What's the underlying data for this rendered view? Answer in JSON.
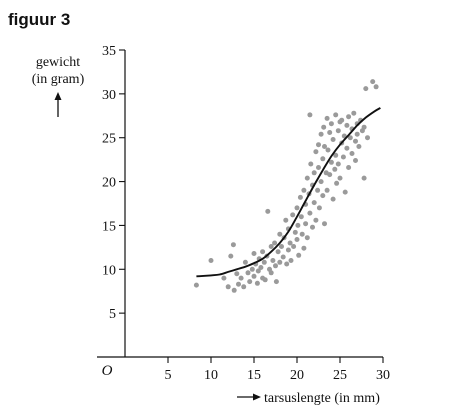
{
  "figure_label": "figuur 3",
  "chart_data": {
    "type": "scatter",
    "ylabel_line1": "gewicht",
    "ylabel_line2": "(in gram)",
    "xlabel": "tarsuslengte (in mm)",
    "origin_label": "O",
    "xlim": [
      0,
      30
    ],
    "ylim": [
      0,
      35
    ],
    "x_ticks": [
      5,
      10,
      15,
      20,
      25,
      30
    ],
    "y_ticks": [
      5,
      10,
      15,
      20,
      25,
      30,
      35
    ],
    "point_color": "#9a9a9a",
    "curve_color": "#111111",
    "series": [
      {
        "kind": "points",
        "points": [
          [
            8.3,
            8.2
          ],
          [
            10.0,
            11.0
          ],
          [
            11.5,
            9.0
          ],
          [
            12.0,
            8.0
          ],
          [
            12.3,
            11.5
          ],
          [
            12.6,
            12.8
          ],
          [
            12.7,
            7.6
          ],
          [
            13.0,
            9.5
          ],
          [
            13.2,
            8.3
          ],
          [
            13.5,
            9.0
          ],
          [
            13.8,
            8.0
          ],
          [
            14.0,
            10.8
          ],
          [
            14.3,
            9.6
          ],
          [
            14.5,
            8.6
          ],
          [
            14.8,
            10.0
          ],
          [
            15.0,
            11.8
          ],
          [
            15.0,
            9.2
          ],
          [
            15.2,
            10.6
          ],
          [
            15.4,
            8.4
          ],
          [
            15.5,
            9.8
          ],
          [
            15.6,
            11.2
          ],
          [
            15.8,
            10.2
          ],
          [
            16.0,
            12.0
          ],
          [
            16.0,
            9.0
          ],
          [
            16.2,
            10.8
          ],
          [
            16.3,
            8.8
          ],
          [
            16.5,
            11.5
          ],
          [
            16.6,
            16.6
          ],
          [
            16.8,
            10.0
          ],
          [
            17.0,
            12.6
          ],
          [
            17.0,
            9.6
          ],
          [
            17.2,
            11.0
          ],
          [
            17.4,
            13.0
          ],
          [
            17.5,
            10.4
          ],
          [
            17.6,
            8.6
          ],
          [
            17.8,
            12.0
          ],
          [
            18.0,
            14.0
          ],
          [
            18.0,
            10.8
          ],
          [
            18.2,
            12.6
          ],
          [
            18.4,
            11.4
          ],
          [
            18.5,
            13.6
          ],
          [
            18.7,
            15.6
          ],
          [
            18.8,
            10.6
          ],
          [
            19.0,
            12.2
          ],
          [
            19.0,
            14.6
          ],
          [
            19.2,
            13.0
          ],
          [
            19.3,
            11.0
          ],
          [
            19.5,
            16.2
          ],
          [
            19.6,
            12.6
          ],
          [
            19.8,
            14.2
          ],
          [
            20.0,
            17.0
          ],
          [
            20.0,
            13.4
          ],
          [
            20.1,
            15.0
          ],
          [
            20.2,
            11.6
          ],
          [
            20.4,
            18.2
          ],
          [
            20.5,
            16.0
          ],
          [
            20.6,
            14.0
          ],
          [
            20.8,
            19.0
          ],
          [
            20.8,
            12.4
          ],
          [
            21.0,
            17.4
          ],
          [
            21.0,
            15.2
          ],
          [
            21.2,
            20.4
          ],
          [
            21.2,
            13.6
          ],
          [
            21.4,
            18.6
          ],
          [
            21.5,
            27.6
          ],
          [
            21.5,
            16.4
          ],
          [
            21.6,
            22.0
          ],
          [
            21.8,
            19.6
          ],
          [
            21.8,
            14.8
          ],
          [
            22.0,
            21.0
          ],
          [
            22.0,
            17.6
          ],
          [
            22.2,
            23.4
          ],
          [
            22.2,
            15.6
          ],
          [
            22.4,
            19.0
          ],
          [
            22.5,
            24.2
          ],
          [
            22.5,
            21.6
          ],
          [
            22.6,
            17.0
          ],
          [
            22.8,
            25.4
          ],
          [
            22.8,
            20.0
          ],
          [
            23.0,
            22.6
          ],
          [
            23.0,
            18.4
          ],
          [
            23.1,
            26.2
          ],
          [
            23.2,
            24.0
          ],
          [
            23.2,
            15.2
          ],
          [
            23.4,
            21.0
          ],
          [
            23.5,
            27.2
          ],
          [
            23.5,
            19.0
          ],
          [
            23.6,
            23.6
          ],
          [
            23.8,
            25.6
          ],
          [
            23.8,
            20.8
          ],
          [
            24.0,
            22.2
          ],
          [
            24.0,
            26.6
          ],
          [
            24.2,
            18.0
          ],
          [
            24.2,
            24.8
          ],
          [
            24.4,
            21.4
          ],
          [
            24.5,
            27.6
          ],
          [
            24.5,
            23.0
          ],
          [
            24.6,
            19.8
          ],
          [
            24.8,
            25.8
          ],
          [
            24.8,
            22.0
          ],
          [
            25.0,
            26.8
          ],
          [
            25.0,
            20.4
          ],
          [
            25.2,
            24.4
          ],
          [
            25.2,
            27.0
          ],
          [
            25.4,
            22.8
          ],
          [
            25.5,
            25.2
          ],
          [
            25.6,
            18.8
          ],
          [
            25.8,
            26.4
          ],
          [
            25.8,
            23.8
          ],
          [
            26.0,
            27.4
          ],
          [
            26.0,
            21.6
          ],
          [
            26.2,
            25.0
          ],
          [
            26.4,
            26.0
          ],
          [
            26.4,
            23.2
          ],
          [
            26.6,
            27.8
          ],
          [
            26.8,
            24.6
          ],
          [
            26.8,
            22.4
          ],
          [
            27.0,
            26.6
          ],
          [
            27.0,
            25.4
          ],
          [
            27.2,
            24.0
          ],
          [
            27.4,
            27.0
          ],
          [
            27.6,
            25.8
          ],
          [
            27.8,
            26.2
          ],
          [
            27.8,
            20.4
          ],
          [
            28.0,
            30.6
          ],
          [
            28.2,
            25.0
          ],
          [
            28.8,
            31.4
          ],
          [
            29.2,
            30.8
          ]
        ]
      },
      {
        "kind": "curve",
        "points": [
          [
            8.3,
            9.2
          ],
          [
            10.0,
            9.3
          ],
          [
            11.0,
            9.4
          ],
          [
            12.0,
            9.7
          ],
          [
            13.0,
            10.0
          ],
          [
            14.0,
            10.3
          ],
          [
            15.0,
            10.7
          ],
          [
            16.0,
            11.2
          ],
          [
            17.0,
            12.0
          ],
          [
            18.0,
            13.0
          ],
          [
            19.0,
            14.3
          ],
          [
            20.0,
            16.0
          ],
          [
            21.0,
            17.8
          ],
          [
            22.0,
            19.6
          ],
          [
            23.0,
            21.3
          ],
          [
            24.0,
            22.9
          ],
          [
            25.0,
            24.2
          ],
          [
            26.0,
            25.3
          ],
          [
            27.0,
            26.4
          ],
          [
            28.0,
            27.3
          ],
          [
            29.0,
            28.0
          ],
          [
            29.7,
            28.4
          ]
        ]
      }
    ]
  }
}
